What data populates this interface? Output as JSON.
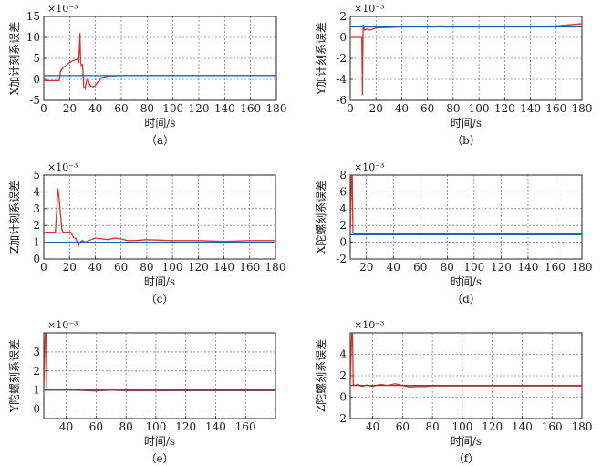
{
  "chart_data": [
    {
      "type": "line",
      "caption": "（a）",
      "xlabel": "时间/s",
      "ylabel": "X加计刻系误差",
      "exponent": "×10⁻³",
      "xlim": [
        0,
        180
      ],
      "ylim": [
        -5,
        15
      ],
      "xticks": [
        0,
        20,
        40,
        60,
        80,
        100,
        120,
        140,
        160,
        180
      ],
      "yticks": [
        -5,
        0,
        5,
        10,
        15
      ],
      "grid": true,
      "series": [
        {
          "color": "#d9302b",
          "x": [
            0,
            12,
            13,
            15,
            18,
            20,
            23,
            26,
            27,
            28,
            28.5,
            29,
            30,
            31,
            32,
            33,
            34,
            35,
            36,
            38,
            40,
            42,
            45,
            50,
            60,
            80,
            120,
            180
          ],
          "y": [
            -0.3,
            -0.3,
            2,
            2.8,
            3.5,
            4,
            4.5,
            4.8,
            4.2,
            11,
            4,
            3.3,
            3.5,
            -1.8,
            -2.2,
            -0.5,
            0.2,
            -0.8,
            -1.5,
            -1.8,
            -1.4,
            -0.6,
            0.4,
            0.8,
            0.9,
            0.9,
            0.9,
            0.9
          ]
        },
        {
          "color": "#1f5fa8",
          "x": [
            0,
            180
          ],
          "y": [
            0.9,
            0.9
          ]
        }
      ]
    },
    {
      "type": "line",
      "caption": "（b）",
      "xlabel": "时间/s",
      "ylabel": "Y加计刻系误差",
      "exponent": "×10⁻³",
      "xlim": [
        0,
        180
      ],
      "ylim": [
        -6,
        2
      ],
      "xticks": [
        0,
        20,
        40,
        60,
        80,
        100,
        120,
        140,
        160,
        180
      ],
      "yticks": [
        -6,
        -4,
        -2,
        0,
        2
      ],
      "grid": true,
      "series": [
        {
          "color": "#d9302b",
          "x": [
            0,
            8,
            9,
            9.5,
            10,
            11,
            13,
            15,
            20,
            30,
            40,
            60,
            70,
            80,
            100,
            120,
            140,
            160,
            170,
            180
          ],
          "y": [
            0,
            0,
            0,
            -5.5,
            1.2,
            0.7,
            0.8,
            0.7,
            0.9,
            0.95,
            1.0,
            1.05,
            1.1,
            1.05,
            1.05,
            1.05,
            1.05,
            1.1,
            1.2,
            1.3
          ]
        },
        {
          "color": "#1f5fa8",
          "x": [
            0,
            180
          ],
          "y": [
            1.0,
            1.0
          ]
        }
      ]
    },
    {
      "type": "line",
      "caption": "（c）",
      "xlabel": "时间/s",
      "ylabel": "Z加计刻系误差",
      "exponent": "×10⁻³",
      "xlim": [
        0,
        180
      ],
      "ylim": [
        0,
        5
      ],
      "xticks": [
        0,
        20,
        40,
        60,
        80,
        100,
        120,
        140,
        160,
        180
      ],
      "yticks": [
        0,
        1,
        2,
        3,
        4,
        5
      ],
      "grid": true,
      "series": [
        {
          "color": "#d9302b",
          "x": [
            0,
            9,
            10,
            11,
            12,
            13,
            14,
            15,
            17,
            19,
            21,
            23,
            25,
            27,
            28,
            30,
            32,
            35,
            40,
            45,
            50,
            55,
            60,
            65,
            70,
            80,
            100,
            120,
            140,
            160,
            180
          ],
          "y": [
            1.6,
            1.6,
            2.8,
            4.2,
            3.6,
            2.7,
            1.8,
            1.6,
            1.6,
            1.6,
            1.6,
            1.3,
            1.2,
            0.8,
            1.0,
            1.1,
            1.0,
            1.1,
            1.25,
            1.2,
            1.15,
            1.25,
            1.2,
            1.1,
            1.1,
            1.15,
            1.1,
            1.1,
            1.05,
            1.1,
            1.1
          ]
        },
        {
          "color": "#1f5fa8",
          "x": [
            0,
            180
          ],
          "y": [
            1.0,
            1.0
          ]
        }
      ]
    },
    {
      "type": "line",
      "caption": "（d）",
      "xlabel": "时间/s",
      "ylabel": "X陀螺刻系误差",
      "exponent": "×10⁻³",
      "xlim": [
        8,
        180
      ],
      "ylim": [
        -2,
        8
      ],
      "xticks": [
        20,
        40,
        60,
        80,
        100,
        120,
        140,
        160,
        180
      ],
      "yticks": [
        -2,
        0,
        2,
        4,
        6,
        8
      ],
      "grid": true,
      "series": [
        {
          "color": "#d9302b",
          "x": [
            8,
            9,
            9.5,
            10,
            11,
            15,
            20,
            40,
            60,
            80,
            100,
            120,
            140,
            160,
            180
          ],
          "y": [
            0.9,
            8,
            8,
            1.1,
            1.0,
            1.0,
            1.0,
            1.0,
            1.0,
            1.0,
            1.0,
            1.0,
            1.0,
            1.0,
            1.0
          ]
        },
        {
          "color": "#1f5fa8",
          "x": [
            8,
            180
          ],
          "y": [
            0.9,
            0.9
          ]
        }
      ]
    },
    {
      "type": "line",
      "caption": "（e）",
      "xlabel": "时间/s",
      "ylabel": "Y陀螺刻系误差",
      "exponent": "×10⁻³",
      "xlim": [
        25,
        180
      ],
      "ylim": [
        -0.5,
        4
      ],
      "xticks": [
        40,
        60,
        80,
        100,
        120,
        140,
        160
      ],
      "yticks": [
        0,
        1,
        2,
        3
      ],
      "grid": true,
      "series": [
        {
          "color": "#d9302b",
          "x": [
            25,
            26,
            26.5,
            27,
            28,
            30,
            40,
            50,
            60,
            70,
            80,
            100,
            120,
            140,
            160,
            180
          ],
          "y": [
            1.0,
            4,
            4,
            1.05,
            1.0,
            1.0,
            1.0,
            0.98,
            0.95,
            1.0,
            0.96,
            0.96,
            0.97,
            0.97,
            0.97,
            0.97
          ]
        },
        {
          "color": "#1f5fa8",
          "x": [
            25,
            180
          ],
          "y": [
            1.0,
            1.0
          ]
        }
      ]
    },
    {
      "type": "line",
      "caption": "（f）",
      "xlabel": "时间/s",
      "ylabel": "Z陀螺刻系误差",
      "exponent": "×10⁻³",
      "xlim": [
        25,
        180
      ],
      "ylim": [
        -2,
        6
      ],
      "xticks": [
        40,
        60,
        80,
        100,
        120,
        140,
        160,
        180
      ],
      "yticks": [
        -2,
        0,
        2,
        4
      ],
      "grid": true,
      "series": [
        {
          "color": "#d9302b",
          "x": [
            25,
            26,
            26.5,
            27,
            28,
            30,
            33,
            36,
            40,
            45,
            50,
            55,
            60,
            65,
            70,
            75,
            80,
            100,
            120,
            140,
            160,
            180
          ],
          "y": [
            1.0,
            6,
            6,
            1.2,
            1.1,
            1.2,
            1.0,
            1.15,
            1.0,
            1.2,
            1.1,
            1.25,
            1.1,
            0.95,
            1.0,
            1.0,
            1.05,
            1.05,
            1.05,
            1.05,
            1.05,
            1.05
          ]
        },
        {
          "color": "#1f5fa8",
          "x": [
            25,
            180
          ],
          "y": [
            1.1,
            1.1
          ]
        }
      ]
    }
  ]
}
